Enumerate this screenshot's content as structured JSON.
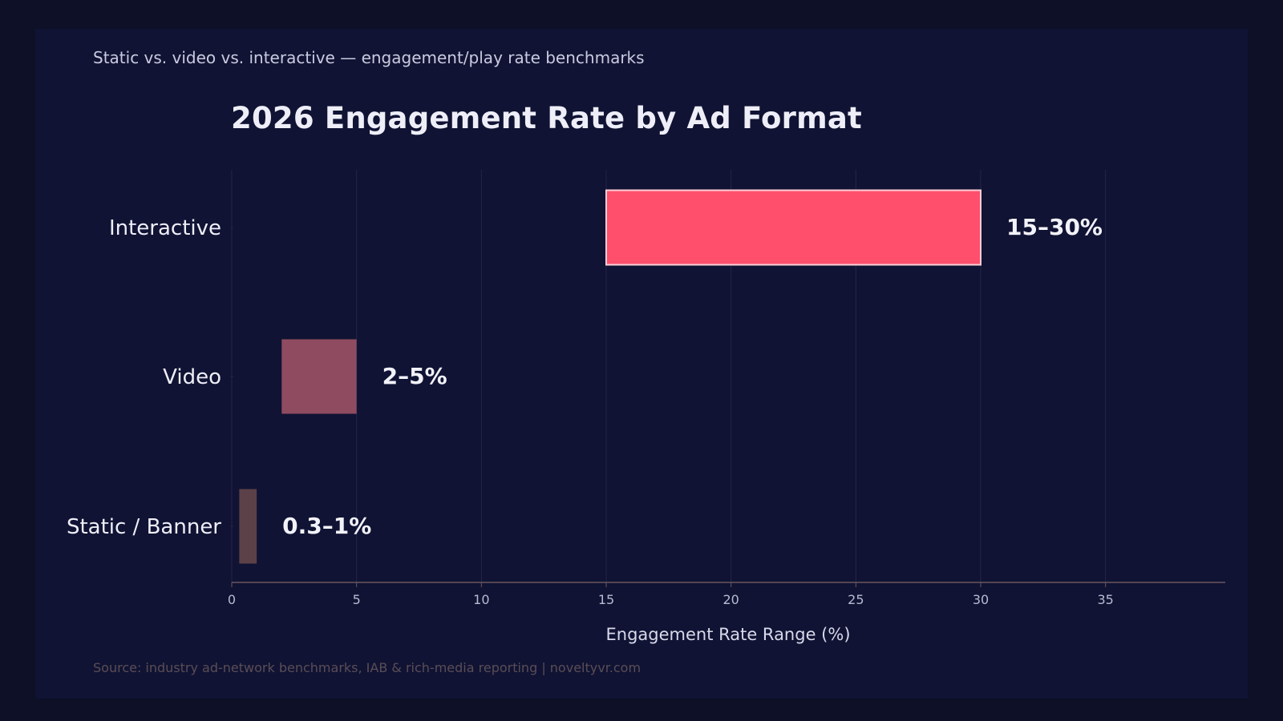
{
  "subtitle": "Static vs. video vs. interactive — engagement/play rate benchmarks",
  "source": "Source: industry ad-network benchmarks, IAB & rich-media reporting  |  noveltyvr.com",
  "colors": {
    "background": "#0d1026",
    "interactive": "#ff4f6d",
    "video": "#8f4b5f",
    "static": "#5c4149",
    "gridline": "#23264a",
    "axis": "#6b5560"
  },
  "chart_data": {
    "type": "bar",
    "orientation": "horizontal",
    "title": "2026 Engagement Rate by Ad Format",
    "xlabel": "Engagement Rate Range (%)",
    "ylabel": "",
    "xlim": [
      0,
      38
    ],
    "xticks": [
      0,
      5,
      10,
      15,
      20,
      25,
      30,
      35
    ],
    "grid": true,
    "categories": [
      "Interactive",
      "Video",
      "Static / Banner"
    ],
    "ranges": [
      {
        "category": "Interactive",
        "low": 15,
        "high": 30,
        "label": "15–30%"
      },
      {
        "category": "Video",
        "low": 2,
        "high": 5,
        "label": "2–5%"
      },
      {
        "category": "Static / Banner",
        "low": 0.3,
        "high": 1,
        "label": "0.3–1%"
      }
    ]
  }
}
